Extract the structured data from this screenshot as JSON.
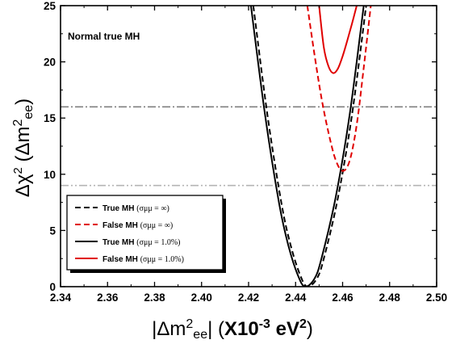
{
  "chart_data": {
    "type": "line",
    "xlabel": "|Δm²ee| (X10⁻³ eV²)",
    "ylabel": "Δχ² (Δm²ee)",
    "annotation": "Normal true MH",
    "xlim": [
      2.34,
      2.5
    ],
    "ylim": [
      0,
      25
    ],
    "xticks": [
      "2.34",
      "2.36",
      "2.38",
      "2.40",
      "2.42",
      "2.44",
      "2.46",
      "2.48",
      "2.50"
    ],
    "yticks": [
      "0",
      "5",
      "10",
      "15",
      "20",
      "25"
    ],
    "grid": false,
    "legend_position": "bottom-left",
    "hlines": [
      {
        "y": 16,
        "style": "dash-dot",
        "color": "#808080"
      },
      {
        "y": 9,
        "style": "dash-dot-dot",
        "color": "#b4b4b4"
      }
    ],
    "series": [
      {
        "name": "True MH (σμμ = ∞)",
        "color": "#000000",
        "style": "dashed",
        "x": [
          2.422,
          2.428,
          2.434,
          2.438,
          2.442,
          2.445,
          2.449,
          2.452,
          2.458,
          2.464,
          2.47
        ],
        "y": [
          25,
          15.3,
          7.4,
          3.6,
          1.0,
          0.0,
          0.7,
          2.5,
          7.9,
          15.3,
          25
        ]
      },
      {
        "name": "False MH (σμμ = ∞)",
        "color": "#e00000",
        "style": "dashed",
        "x": [
          2.445,
          2.448,
          2.451,
          2.454,
          2.457,
          2.46,
          2.463,
          2.466,
          2.469,
          2.472
        ],
        "y": [
          25,
          20.7,
          16.8,
          13.7,
          11.3,
          10.3,
          11.2,
          14.4,
          19.5,
          25
        ]
      },
      {
        "name": "True MH (σμμ = 1.0%)",
        "color": "#000000",
        "style": "solid",
        "x": [
          2.421,
          2.427,
          2.433,
          2.437,
          2.441,
          2.444,
          2.448,
          2.451,
          2.457,
          2.463,
          2.469
        ],
        "y": [
          25,
          15.3,
          7.4,
          3.6,
          1.0,
          0.0,
          0.7,
          2.5,
          7.9,
          15.3,
          25
        ]
      },
      {
        "name": "False MH (σμμ = 1.0%)",
        "color": "#e00000",
        "style": "solid",
        "x": [
          2.45,
          2.452,
          2.454,
          2.456,
          2.458,
          2.46,
          2.462,
          2.464,
          2.466
        ],
        "y": [
          25,
          21.3,
          19.6,
          19.0,
          19.4,
          20.5,
          21.9,
          23.4,
          25
        ]
      }
    ],
    "legend": [
      {
        "label": "True MH",
        "sub": "(σμμ = ∞)"
      },
      {
        "label": "False MH",
        "sub": "(σμμ = ∞)"
      },
      {
        "label": "True MH",
        "sub": "(σμμ = 1.0%)"
      },
      {
        "label": "False MH",
        "sub": "(σμμ = 1.0%)"
      }
    ]
  }
}
